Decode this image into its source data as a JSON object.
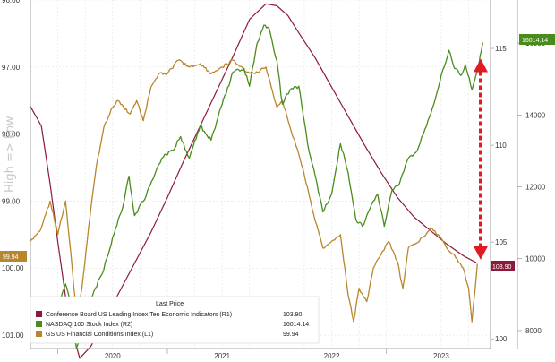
{
  "chart_data": {
    "type": "line",
    "left_axis": {
      "ticks": [
        "96.00",
        "97.00",
        "98.00",
        "99.00",
        "100.00",
        "101.00"
      ],
      "range": [
        96.0,
        101.2
      ],
      "inverted": true,
      "side_label": "High => Low"
    },
    "right_axis_r1": {
      "ticks": [
        "115",
        "110",
        "105",
        "100"
      ],
      "range": [
        99.5,
        117.5
      ]
    },
    "right_axis_r2": {
      "ticks": [
        "16000",
        "14000",
        "12000",
        "10000",
        "8000"
      ],
      "range": [
        7500,
        17200
      ]
    },
    "x_axis": {
      "years": [
        "2020",
        "2021",
        "2022",
        "2023"
      ],
      "range": [
        2019.75,
        2023.95
      ]
    },
    "series": [
      {
        "name": "Conference Board US Leading Index Ten Economic Indicators",
        "axis": "R1",
        "color": "#8b1a3a",
        "last_value": "103.90",
        "points": [
          [
            2019.75,
            112.0
          ],
          [
            2019.85,
            111.0
          ],
          [
            2019.93,
            108.0
          ],
          [
            2020.0,
            105.0
          ],
          [
            2020.1,
            101.0
          ],
          [
            2020.2,
            99.0
          ],
          [
            2020.3,
            99.6
          ],
          [
            2020.4,
            100.6
          ],
          [
            2020.55,
            102.3
          ],
          [
            2020.7,
            103.9
          ],
          [
            2020.85,
            105.5
          ],
          [
            2021.0,
            107.3
          ],
          [
            2021.15,
            109.2
          ],
          [
            2021.3,
            111.0
          ],
          [
            2021.45,
            112.8
          ],
          [
            2021.6,
            114.6
          ],
          [
            2021.75,
            116.5
          ],
          [
            2021.9,
            117.3
          ],
          [
            2022.0,
            117.2
          ],
          [
            2022.1,
            116.7
          ],
          [
            2022.2,
            115.8
          ],
          [
            2022.35,
            114.5
          ],
          [
            2022.5,
            113.0
          ],
          [
            2022.65,
            111.5
          ],
          [
            2022.8,
            110.0
          ],
          [
            2022.95,
            108.6
          ],
          [
            2023.1,
            107.3
          ],
          [
            2023.25,
            106.3
          ],
          [
            2023.4,
            105.6
          ],
          [
            2023.55,
            104.9
          ],
          [
            2023.7,
            104.3
          ],
          [
            2023.83,
            103.9
          ]
        ]
      },
      {
        "name": "NASDAQ 100 Stock Index",
        "axis": "R2",
        "color": "#4a8c1c",
        "last_value": "16014.14",
        "points": [
          [
            2019.85,
            8100
          ],
          [
            2020.0,
            8700
          ],
          [
            2020.07,
            9300
          ],
          [
            2020.12,
            8700
          ],
          [
            2020.17,
            7500
          ],
          [
            2020.25,
            8300
          ],
          [
            2020.33,
            9100
          ],
          [
            2020.42,
            9700
          ],
          [
            2020.5,
            10600
          ],
          [
            2020.58,
            11300
          ],
          [
            2020.65,
            12300
          ],
          [
            2020.7,
            11200
          ],
          [
            2020.78,
            11600
          ],
          [
            2020.88,
            12300
          ],
          [
            2020.95,
            12800
          ],
          [
            2021.05,
            13000
          ],
          [
            2021.12,
            13400
          ],
          [
            2021.2,
            12800
          ],
          [
            2021.3,
            13700
          ],
          [
            2021.4,
            13300
          ],
          [
            2021.5,
            14300
          ],
          [
            2021.6,
            15200
          ],
          [
            2021.7,
            15300
          ],
          [
            2021.75,
            14800
          ],
          [
            2021.82,
            16000
          ],
          [
            2021.88,
            16500
          ],
          [
            2021.93,
            16400
          ],
          [
            2022.0,
            15500
          ],
          [
            2022.05,
            14300
          ],
          [
            2022.12,
            14700
          ],
          [
            2022.2,
            14800
          ],
          [
            2022.28,
            13200
          ],
          [
            2022.35,
            12300
          ],
          [
            2022.42,
            11300
          ],
          [
            2022.5,
            11800
          ],
          [
            2022.58,
            13200
          ],
          [
            2022.65,
            12400
          ],
          [
            2022.72,
            11100
          ],
          [
            2022.78,
            10900
          ],
          [
            2022.85,
            11400
          ],
          [
            2022.92,
            11800
          ],
          [
            2022.98,
            10900
          ],
          [
            2023.05,
            11900
          ],
          [
            2023.12,
            12100
          ],
          [
            2023.2,
            12800
          ],
          [
            2023.28,
            13000
          ],
          [
            2023.35,
            13600
          ],
          [
            2023.42,
            14200
          ],
          [
            2023.5,
            15100
          ],
          [
            2023.57,
            15800
          ],
          [
            2023.62,
            15300
          ],
          [
            2023.68,
            15100
          ],
          [
            2023.72,
            15400
          ],
          [
            2023.78,
            14700
          ],
          [
            2023.83,
            15200
          ],
          [
            2023.88,
            16014
          ]
        ]
      },
      {
        "name": "GS US Financial Conditions Index",
        "axis": "L1",
        "color": "#b8862c",
        "last_value": "99.94",
        "points": [
          [
            2019.75,
            99.6
          ],
          [
            2019.85,
            99.4
          ],
          [
            2019.93,
            99.0
          ],
          [
            2020.0,
            99.5
          ],
          [
            2020.07,
            99.0
          ],
          [
            2020.12,
            99.8
          ],
          [
            2020.17,
            100.7
          ],
          [
            2020.22,
            100.3
          ],
          [
            2020.28,
            99.4
          ],
          [
            2020.35,
            98.5
          ],
          [
            2020.42,
            97.9
          ],
          [
            2020.5,
            97.6
          ],
          [
            2020.55,
            97.5
          ],
          [
            2020.6,
            97.6
          ],
          [
            2020.66,
            97.7
          ],
          [
            2020.72,
            97.5
          ],
          [
            2020.78,
            97.8
          ],
          [
            2020.85,
            97.3
          ],
          [
            2020.92,
            97.1
          ],
          [
            2021.0,
            97.1
          ],
          [
            2021.1,
            96.9
          ],
          [
            2021.2,
            97.0
          ],
          [
            2021.3,
            96.95
          ],
          [
            2021.4,
            97.1
          ],
          [
            2021.5,
            97.0
          ],
          [
            2021.6,
            96.9
          ],
          [
            2021.7,
            97.05
          ],
          [
            2021.8,
            97.1
          ],
          [
            2021.9,
            97.0
          ],
          [
            2022.0,
            97.6
          ],
          [
            2022.05,
            97.5
          ],
          [
            2022.12,
            97.9
          ],
          [
            2022.2,
            98.3
          ],
          [
            2022.28,
            98.8
          ],
          [
            2022.35,
            99.3
          ],
          [
            2022.42,
            99.7
          ],
          [
            2022.5,
            99.6
          ],
          [
            2022.58,
            99.5
          ],
          [
            2022.65,
            100.4
          ],
          [
            2022.7,
            100.8
          ],
          [
            2022.75,
            100.3
          ],
          [
            2022.82,
            100.5
          ],
          [
            2022.88,
            100.0
          ],
          [
            2022.95,
            99.8
          ],
          [
            2023.02,
            99.6
          ],
          [
            2023.1,
            99.9
          ],
          [
            2023.15,
            100.3
          ],
          [
            2023.2,
            99.7
          ],
          [
            2023.3,
            99.6
          ],
          [
            2023.4,
            99.4
          ],
          [
            2023.47,
            99.5
          ],
          [
            2023.55,
            99.7
          ],
          [
            2023.62,
            99.8
          ],
          [
            2023.7,
            100.0
          ],
          [
            2023.75,
            100.3
          ],
          [
            2023.78,
            100.8
          ],
          [
            2023.83,
            99.94
          ]
        ]
      }
    ],
    "legend": {
      "header": "Last Price",
      "placement": "bottom-left",
      "entries": [
        {
          "label": "Conference Board US Leading Index Ten Economic Indicators  (R1)",
          "value": "103.90"
        },
        {
          "label": "NASDAQ 100 Stock Index  (R2)",
          "value": "16014.14"
        },
        {
          "label": "GS US Financial Conditions Index  (L1)",
          "value": "99.94"
        }
      ]
    },
    "annotation": {
      "type": "double-arrow",
      "color": "#e01b24",
      "from_value": 2023.86
    },
    "grid": true
  }
}
